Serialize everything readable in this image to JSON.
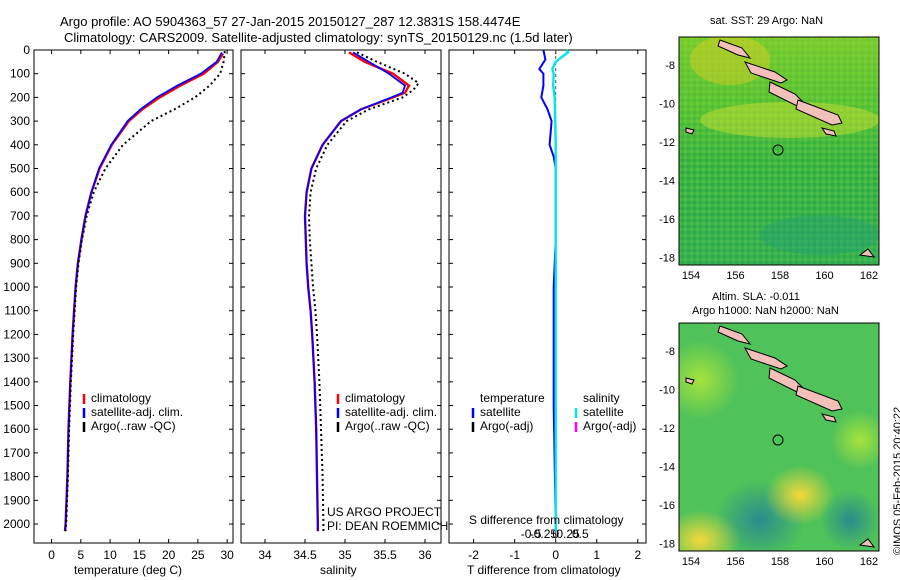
{
  "header": {
    "line1": "Argo profile: AO 5904363_57 27-Jan-2015 20150127_287 12.3831S 158.4474E",
    "line2": "Climatology: CARS2009. Satellite-adjusted climatology: synTS_20150129.nc (1.5d later)"
  },
  "colors": {
    "climatology": "#ff0000",
    "satellite": "#0000ff",
    "argo": "#000000",
    "sat_salinity": "#00e5ee",
    "argo_adj_salinity": "#ff00ff"
  },
  "depth_ticks": [
    "0",
    "100",
    "200",
    "300",
    "400",
    "500",
    "600",
    "700",
    "800",
    "900",
    "1000",
    "1100",
    "1200",
    "1300",
    "1400",
    "1500",
    "1600",
    "1700",
    "1800",
    "1900",
    "2000"
  ],
  "chart_data": [
    {
      "type": "line",
      "xlabel": "temperature (deg C)",
      "ylabel": "",
      "xlim": [
        -3,
        31
      ],
      "ylim": [
        2080,
        0
      ],
      "xticks": [
        "0",
        "5",
        "10",
        "15",
        "20",
        "25",
        "30"
      ],
      "legend": [
        "climatology",
        "satellite-adj. clim.",
        "Argo(..raw -QC)"
      ],
      "series": [
        {
          "name": "climatology",
          "depth": [
            15,
            50,
            100,
            150,
            200,
            250,
            300,
            400,
            500,
            600,
            700,
            800,
            900,
            1000,
            1200,
            1400,
            1600,
            1800,
            2000,
            2030
          ],
          "values": [
            29.3,
            28.4,
            26,
            22,
            18.5,
            15.5,
            13.2,
            10.3,
            8.2,
            6.8,
            5.8,
            5.1,
            4.5,
            4.1,
            3.6,
            3.2,
            2.9,
            2.7,
            2.4,
            2.3
          ]
        },
        {
          "name": "satellite-adj. clim.",
          "depth": [
            10,
            50,
            100,
            150,
            200,
            250,
            300,
            400,
            500,
            600,
            700,
            800,
            900,
            1000,
            1200,
            1400,
            1600,
            1800,
            2000,
            2030
          ],
          "values": [
            29.1,
            28.2,
            25.5,
            21.5,
            18,
            15.2,
            13,
            10.2,
            8.1,
            6.8,
            5.8,
            5.1,
            4.5,
            4.1,
            3.6,
            3.2,
            2.9,
            2.7,
            2.4,
            2.3
          ]
        },
        {
          "name": "Argo(..raw -QC)",
          "depth": [
            5,
            50,
            100,
            150,
            200,
            250,
            300,
            400,
            500,
            600,
            700,
            800,
            900,
            1000,
            1200,
            1400,
            1600,
            1800,
            2000,
            2030
          ],
          "values": [
            29.6,
            29.4,
            28.8,
            27,
            24.5,
            21,
            17,
            12.2,
            9.2,
            7.2,
            6,
            5.2,
            4.6,
            4.2,
            3.7,
            3.3,
            3,
            2.8,
            2.5,
            2.4
          ]
        }
      ]
    },
    {
      "type": "line",
      "xlabel": "salinity",
      "ylabel": "",
      "xlim": [
        33.7,
        36.2
      ],
      "ylim": [
        2080,
        0
      ],
      "xticks": [
        "34",
        "34.5",
        "35",
        "35.5",
        "36"
      ],
      "legend": [
        "climatology",
        "satellite-adj. clim.",
        "Argo(..raw -QC)"
      ],
      "series": [
        {
          "name": "climatology",
          "depth": [
            10,
            50,
            100,
            150,
            180,
            200,
            250,
            300,
            400,
            500,
            600,
            700,
            800,
            900,
            1000,
            1100,
            1200,
            1400,
            1600,
            1800,
            2000,
            2030
          ],
          "values": [
            35.05,
            35.25,
            35.6,
            35.8,
            35.75,
            35.6,
            35.2,
            34.95,
            34.72,
            34.58,
            34.52,
            34.5,
            34.51,
            34.52,
            34.54,
            34.57,
            34.59,
            34.62,
            34.64,
            34.65,
            34.66,
            34.66
          ]
        },
        {
          "name": "satellite-adj. clim.",
          "depth": [
            10,
            50,
            100,
            150,
            180,
            200,
            250,
            300,
            400,
            500,
            600,
            700,
            800,
            900,
            1000,
            1100,
            1200,
            1400,
            1600,
            1800,
            2000,
            2030
          ],
          "values": [
            35.1,
            35.3,
            35.55,
            35.75,
            35.72,
            35.58,
            35.2,
            34.95,
            34.72,
            34.58,
            34.52,
            34.5,
            34.51,
            34.52,
            34.54,
            34.57,
            34.59,
            34.62,
            34.64,
            34.65,
            34.66,
            34.66
          ]
        },
        {
          "name": "Argo(..raw -QC)",
          "depth": [
            10,
            50,
            100,
            140,
            170,
            200,
            250,
            300,
            400,
            500,
            600,
            700,
            800,
            900,
            1000,
            1100,
            1200,
            1400,
            1600,
            1800,
            2000,
            2030
          ],
          "values": [
            35.15,
            35.4,
            35.75,
            35.92,
            35.85,
            35.72,
            35.3,
            35.02,
            34.78,
            34.64,
            34.57,
            34.55,
            34.56,
            34.58,
            34.6,
            34.63,
            34.65,
            34.68,
            34.7,
            34.72,
            34.73,
            34.73
          ]
        }
      ]
    },
    {
      "type": "line",
      "xlabel": "T difference from climatology",
      "x2label": "S difference from climatology",
      "xlim": [
        -2.6,
        2.2
      ],
      "ylim": [
        2080,
        0
      ],
      "xticks": [
        "-2",
        "-1",
        "0",
        "1",
        "2"
      ],
      "x2ticks": [
        "-0.5",
        "-0.25",
        "0",
        "0.25",
        "0.5"
      ],
      "legend_temperature": [
        "temperature",
        "satellite",
        "Argo(-adj)"
      ],
      "legend_salinity": [
        "salinity",
        "satellite",
        "Argo(-adj)"
      ],
      "series": [
        {
          "name": "temperature satellite",
          "depth": [
            0,
            40,
            80,
            100,
            150,
            200,
            250,
            300,
            400,
            450,
            500,
            600,
            800,
            1000,
            1500,
            2000,
            2030
          ],
          "values": [
            -0.3,
            -0.25,
            -0.4,
            -0.3,
            -0.3,
            -0.35,
            -0.2,
            -0.1,
            -0.15,
            -0.05,
            0,
            0,
            0,
            -0.05,
            -0.05,
            0,
            0
          ]
        },
        {
          "name": "salinity satellite",
          "depth": [
            0,
            10,
            30,
            50,
            80,
            100,
            150,
            200,
            300,
            400,
            600,
            800,
            1000,
            1500,
            2000,
            2030
          ],
          "values": [
            0.21,
            0.25,
            0.12,
            0.0,
            -0.07,
            -0.04,
            -0.05,
            -0.02,
            -0.01,
            0,
            0,
            0,
            0,
            0,
            0,
            0
          ]
        }
      ]
    }
  ],
  "credits": {
    "project": "US ARGO PROJECT",
    "pi": "PI: DEAN ROEMMICH"
  },
  "maps": [
    {
      "title": "sat. SST: 29 Argo: NaN",
      "yticks": [
        "-8",
        "-10",
        "-12",
        "-14",
        "-16",
        "-18"
      ],
      "xticks": [
        "154",
        "156",
        "158",
        "160",
        "162"
      ]
    },
    {
      "title_line1": "Altim. SLA: -0.011",
      "title_line2": "Argo h1000: NaN h2000: NaN",
      "yticks": [
        "-8",
        "-10",
        "-12",
        "-14",
        "-16",
        "-18"
      ],
      "xticks": [
        "154",
        "156",
        "158",
        "160",
        "162"
      ]
    }
  ],
  "stamp": "©IMOS 05-Feb-2015 20:40:22"
}
